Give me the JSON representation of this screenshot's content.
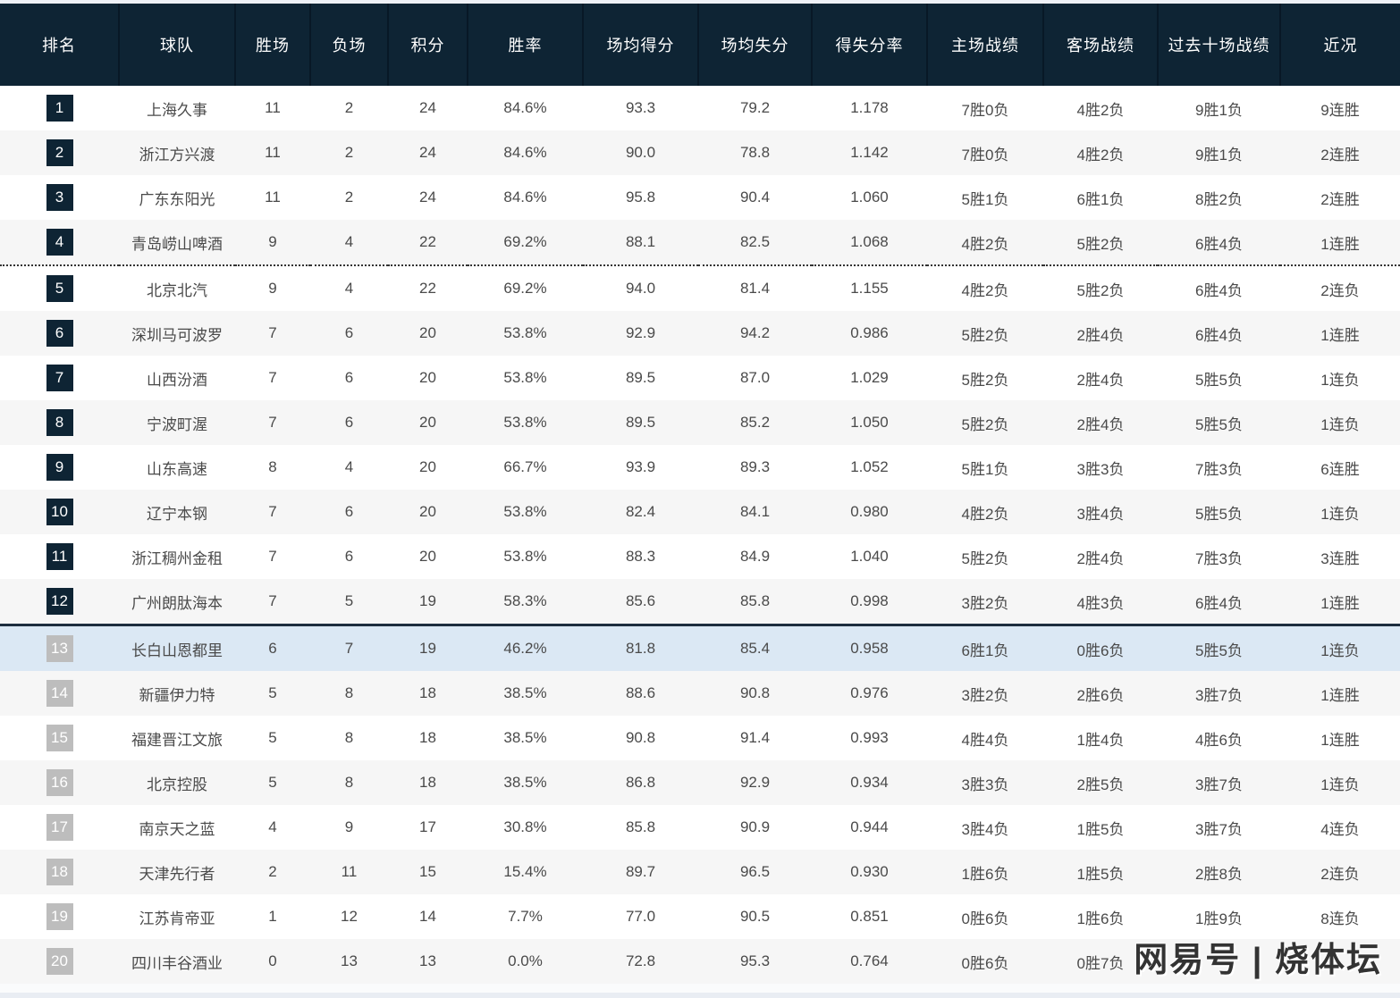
{
  "page": {
    "watermark": "网易号 | 烧体坛"
  },
  "colors": {
    "header_bg": "#0e2434",
    "header_text": "#ffffff",
    "row_alt_bg": "#f6f6f6",
    "highlight_row_bg": "#dbe8f4",
    "rank_badge_dark": "#0e2434",
    "rank_badge_gray": "#bdbdbd",
    "body_text": "#4a4a4a"
  },
  "table": {
    "columns": [
      {
        "key": "rank",
        "label": "排名"
      },
      {
        "key": "team",
        "label": "球队"
      },
      {
        "key": "wins",
        "label": "胜场"
      },
      {
        "key": "losses",
        "label": "负场"
      },
      {
        "key": "points",
        "label": "积分"
      },
      {
        "key": "win_pct",
        "label": "胜率"
      },
      {
        "key": "ppg",
        "label": "场均得分"
      },
      {
        "key": "papg",
        "label": "场均失分"
      },
      {
        "key": "ratio",
        "label": "得失分率"
      },
      {
        "key": "home",
        "label": "主场战绩"
      },
      {
        "key": "away",
        "label": "客场战绩"
      },
      {
        "key": "last10",
        "label": "过去十场战绩"
      },
      {
        "key": "streak",
        "label": "近况"
      }
    ],
    "rows": [
      {
        "rank": "1",
        "team": "上海久事",
        "wins": "11",
        "losses": "2",
        "points": "24",
        "win_pct": "84.6%",
        "ppg": "93.3",
        "papg": "79.2",
        "ratio": "1.178",
        "home": "7胜0负",
        "away": "4胜2负",
        "last10": "9胜1负",
        "streak": "9连胜",
        "badge": "dark",
        "highlight": false,
        "divider_after": ""
      },
      {
        "rank": "2",
        "team": "浙江方兴渡",
        "wins": "11",
        "losses": "2",
        "points": "24",
        "win_pct": "84.6%",
        "ppg": "90.0",
        "papg": "78.8",
        "ratio": "1.142",
        "home": "7胜0负",
        "away": "4胜2负",
        "last10": "9胜1负",
        "streak": "2连胜",
        "badge": "dark",
        "highlight": false,
        "divider_after": ""
      },
      {
        "rank": "3",
        "team": "广东东阳光",
        "wins": "11",
        "losses": "2",
        "points": "24",
        "win_pct": "84.6%",
        "ppg": "95.8",
        "papg": "90.4",
        "ratio": "1.060",
        "home": "5胜1负",
        "away": "6胜1负",
        "last10": "8胜2负",
        "streak": "2连胜",
        "badge": "dark",
        "highlight": false,
        "divider_after": ""
      },
      {
        "rank": "4",
        "team": "青岛崂山啤酒",
        "wins": "9",
        "losses": "4",
        "points": "22",
        "win_pct": "69.2%",
        "ppg": "88.1",
        "papg": "82.5",
        "ratio": "1.068",
        "home": "4胜2负",
        "away": "5胜2负",
        "last10": "6胜4负",
        "streak": "1连胜",
        "badge": "dark",
        "highlight": false,
        "divider_after": "dotted"
      },
      {
        "rank": "5",
        "team": "北京北汽",
        "wins": "9",
        "losses": "4",
        "points": "22",
        "win_pct": "69.2%",
        "ppg": "94.0",
        "papg": "81.4",
        "ratio": "1.155",
        "home": "4胜2负",
        "away": "5胜2负",
        "last10": "6胜4负",
        "streak": "2连负",
        "badge": "dark",
        "highlight": false,
        "divider_after": ""
      },
      {
        "rank": "6",
        "team": "深圳马可波罗",
        "wins": "7",
        "losses": "6",
        "points": "20",
        "win_pct": "53.8%",
        "ppg": "92.9",
        "papg": "94.2",
        "ratio": "0.986",
        "home": "5胜2负",
        "away": "2胜4负",
        "last10": "6胜4负",
        "streak": "1连胜",
        "badge": "dark",
        "highlight": false,
        "divider_after": ""
      },
      {
        "rank": "7",
        "team": "山西汾酒",
        "wins": "7",
        "losses": "6",
        "points": "20",
        "win_pct": "53.8%",
        "ppg": "89.5",
        "papg": "87.0",
        "ratio": "1.029",
        "home": "5胜2负",
        "away": "2胜4负",
        "last10": "5胜5负",
        "streak": "1连负",
        "badge": "dark",
        "highlight": false,
        "divider_after": ""
      },
      {
        "rank": "8",
        "team": "宁波町渥",
        "wins": "7",
        "losses": "6",
        "points": "20",
        "win_pct": "53.8%",
        "ppg": "89.5",
        "papg": "85.2",
        "ratio": "1.050",
        "home": "5胜2负",
        "away": "2胜4负",
        "last10": "5胜5负",
        "streak": "1连负",
        "badge": "dark",
        "highlight": false,
        "divider_after": ""
      },
      {
        "rank": "9",
        "team": "山东高速",
        "wins": "8",
        "losses": "4",
        "points": "20",
        "win_pct": "66.7%",
        "ppg": "93.9",
        "papg": "89.3",
        "ratio": "1.052",
        "home": "5胜1负",
        "away": "3胜3负",
        "last10": "7胜3负",
        "streak": "6连胜",
        "badge": "dark",
        "highlight": false,
        "divider_after": ""
      },
      {
        "rank": "10",
        "team": "辽宁本钢",
        "wins": "7",
        "losses": "6",
        "points": "20",
        "win_pct": "53.8%",
        "ppg": "82.4",
        "papg": "84.1",
        "ratio": "0.980",
        "home": "4胜2负",
        "away": "3胜4负",
        "last10": "5胜5负",
        "streak": "1连负",
        "badge": "dark",
        "highlight": false,
        "divider_after": ""
      },
      {
        "rank": "11",
        "team": "浙江稠州金租",
        "wins": "7",
        "losses": "6",
        "points": "20",
        "win_pct": "53.8%",
        "ppg": "88.3",
        "papg": "84.9",
        "ratio": "1.040",
        "home": "5胜2负",
        "away": "2胜4负",
        "last10": "7胜3负",
        "streak": "3连胜",
        "badge": "dark",
        "highlight": false,
        "divider_after": ""
      },
      {
        "rank": "12",
        "team": "广州朗肽海本",
        "wins": "7",
        "losses": "5",
        "points": "19",
        "win_pct": "58.3%",
        "ppg": "85.6",
        "papg": "85.8",
        "ratio": "0.998",
        "home": "3胜2负",
        "away": "4胜3负",
        "last10": "6胜4负",
        "streak": "1连胜",
        "badge": "dark",
        "highlight": false,
        "divider_after": "solid"
      },
      {
        "rank": "13",
        "team": "长白山恩都里",
        "wins": "6",
        "losses": "7",
        "points": "19",
        "win_pct": "46.2%",
        "ppg": "81.8",
        "papg": "85.4",
        "ratio": "0.958",
        "home": "6胜1负",
        "away": "0胜6负",
        "last10": "5胜5负",
        "streak": "1连负",
        "badge": "gray",
        "highlight": true,
        "divider_after": ""
      },
      {
        "rank": "14",
        "team": "新疆伊力特",
        "wins": "5",
        "losses": "8",
        "points": "18",
        "win_pct": "38.5%",
        "ppg": "88.6",
        "papg": "90.8",
        "ratio": "0.976",
        "home": "3胜2负",
        "away": "2胜6负",
        "last10": "3胜7负",
        "streak": "1连胜",
        "badge": "gray",
        "highlight": false,
        "divider_after": ""
      },
      {
        "rank": "15",
        "team": "福建晋江文旅",
        "wins": "5",
        "losses": "8",
        "points": "18",
        "win_pct": "38.5%",
        "ppg": "90.8",
        "papg": "91.4",
        "ratio": "0.993",
        "home": "4胜4负",
        "away": "1胜4负",
        "last10": "4胜6负",
        "streak": "1连胜",
        "badge": "gray",
        "highlight": false,
        "divider_after": ""
      },
      {
        "rank": "16",
        "team": "北京控股",
        "wins": "5",
        "losses": "8",
        "points": "18",
        "win_pct": "38.5%",
        "ppg": "86.8",
        "papg": "92.9",
        "ratio": "0.934",
        "home": "3胜3负",
        "away": "2胜5负",
        "last10": "3胜7负",
        "streak": "1连负",
        "badge": "gray",
        "highlight": false,
        "divider_after": ""
      },
      {
        "rank": "17",
        "team": "南京天之蓝",
        "wins": "4",
        "losses": "9",
        "points": "17",
        "win_pct": "30.8%",
        "ppg": "85.8",
        "papg": "90.9",
        "ratio": "0.944",
        "home": "3胜4负",
        "away": "1胜5负",
        "last10": "3胜7负",
        "streak": "4连负",
        "badge": "gray",
        "highlight": false,
        "divider_after": ""
      },
      {
        "rank": "18",
        "team": "天津先行者",
        "wins": "2",
        "losses": "11",
        "points": "15",
        "win_pct": "15.4%",
        "ppg": "89.7",
        "papg": "96.5",
        "ratio": "0.930",
        "home": "1胜6负",
        "away": "1胜5负",
        "last10": "2胜8负",
        "streak": "2连负",
        "badge": "gray",
        "highlight": false,
        "divider_after": ""
      },
      {
        "rank": "19",
        "team": "江苏肯帝亚",
        "wins": "1",
        "losses": "12",
        "points": "14",
        "win_pct": "7.7%",
        "ppg": "77.0",
        "papg": "90.5",
        "ratio": "0.851",
        "home": "0胜6负",
        "away": "1胜6负",
        "last10": "1胜9负",
        "streak": "8连负",
        "badge": "gray",
        "highlight": false,
        "divider_after": ""
      },
      {
        "rank": "20",
        "team": "四川丰谷酒业",
        "wins": "0",
        "losses": "13",
        "points": "13",
        "win_pct": "0.0%",
        "ppg": "72.8",
        "papg": "95.3",
        "ratio": "0.764",
        "home": "0胜6负",
        "away": "0胜7负",
        "last10": "",
        "streak": "",
        "badge": "gray",
        "highlight": false,
        "divider_after": ""
      }
    ]
  }
}
